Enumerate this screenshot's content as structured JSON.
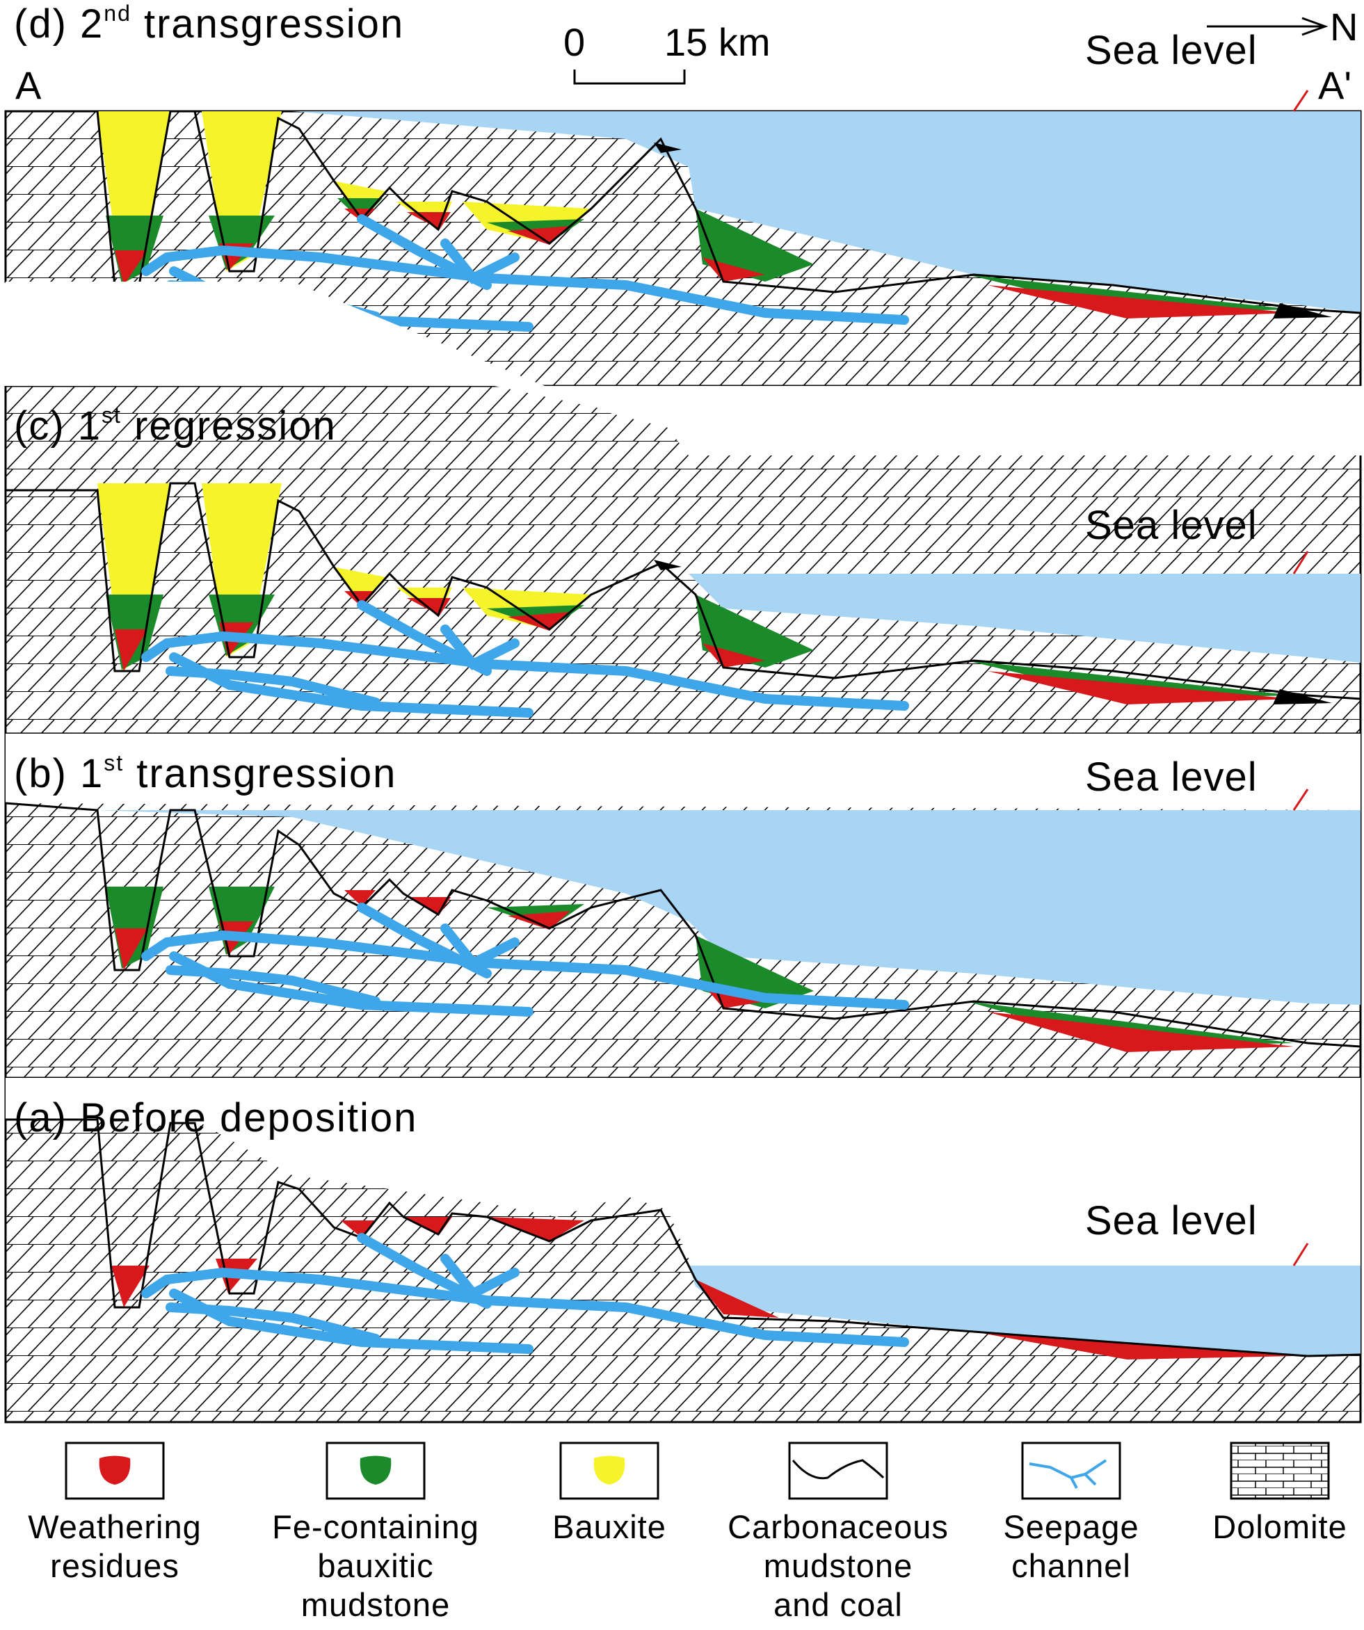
{
  "colors": {
    "sea": "#a9d5f4",
    "weathering": "#d7191c",
    "fe_mudstone": "#1a8a2b",
    "bauxite": "#f5f32a",
    "coal": "#000000",
    "seepage": "#3fa6e9",
    "sea_level_marker": "#d7191c"
  },
  "header": {
    "end_a": "A",
    "end_a_prime": "A'",
    "north": "N",
    "scale_zero": "0",
    "scale_value": "15 km"
  },
  "panels": [
    {
      "id": "d",
      "prefix": "(d) 2",
      "sup": "nd",
      "suffix": " transgression",
      "sea_label": "Sea level"
    },
    {
      "id": "c",
      "prefix": "(c) 1",
      "sup": "st",
      "suffix": " regression",
      "sea_label": "Sea level"
    },
    {
      "id": "b",
      "prefix": "(b) 1",
      "sup": "st",
      "suffix": " transgression",
      "sea_label": "Sea level"
    },
    {
      "id": "a",
      "prefix": "(a) Before deposition",
      "sup": "",
      "suffix": "",
      "sea_label": "Sea level"
    }
  ],
  "legend": [
    {
      "key": "weathering",
      "line1": "Weathering",
      "line2": "residues",
      "line3": ""
    },
    {
      "key": "fe_mudstone",
      "line1": "Fe-containing",
      "line2": "bauxitic",
      "line3": "mudstone"
    },
    {
      "key": "bauxite",
      "line1": "Bauxite",
      "line2": "",
      "line3": ""
    },
    {
      "key": "coal",
      "line1": "Carbonaceous",
      "line2": "mudstone",
      "line3": "and coal"
    },
    {
      "key": "seepage",
      "line1": "Seepage",
      "line2": "channel",
      "line3": ""
    },
    {
      "key": "dolomite",
      "line1": "Dolomite",
      "line2": "",
      "line3": ""
    }
  ]
}
